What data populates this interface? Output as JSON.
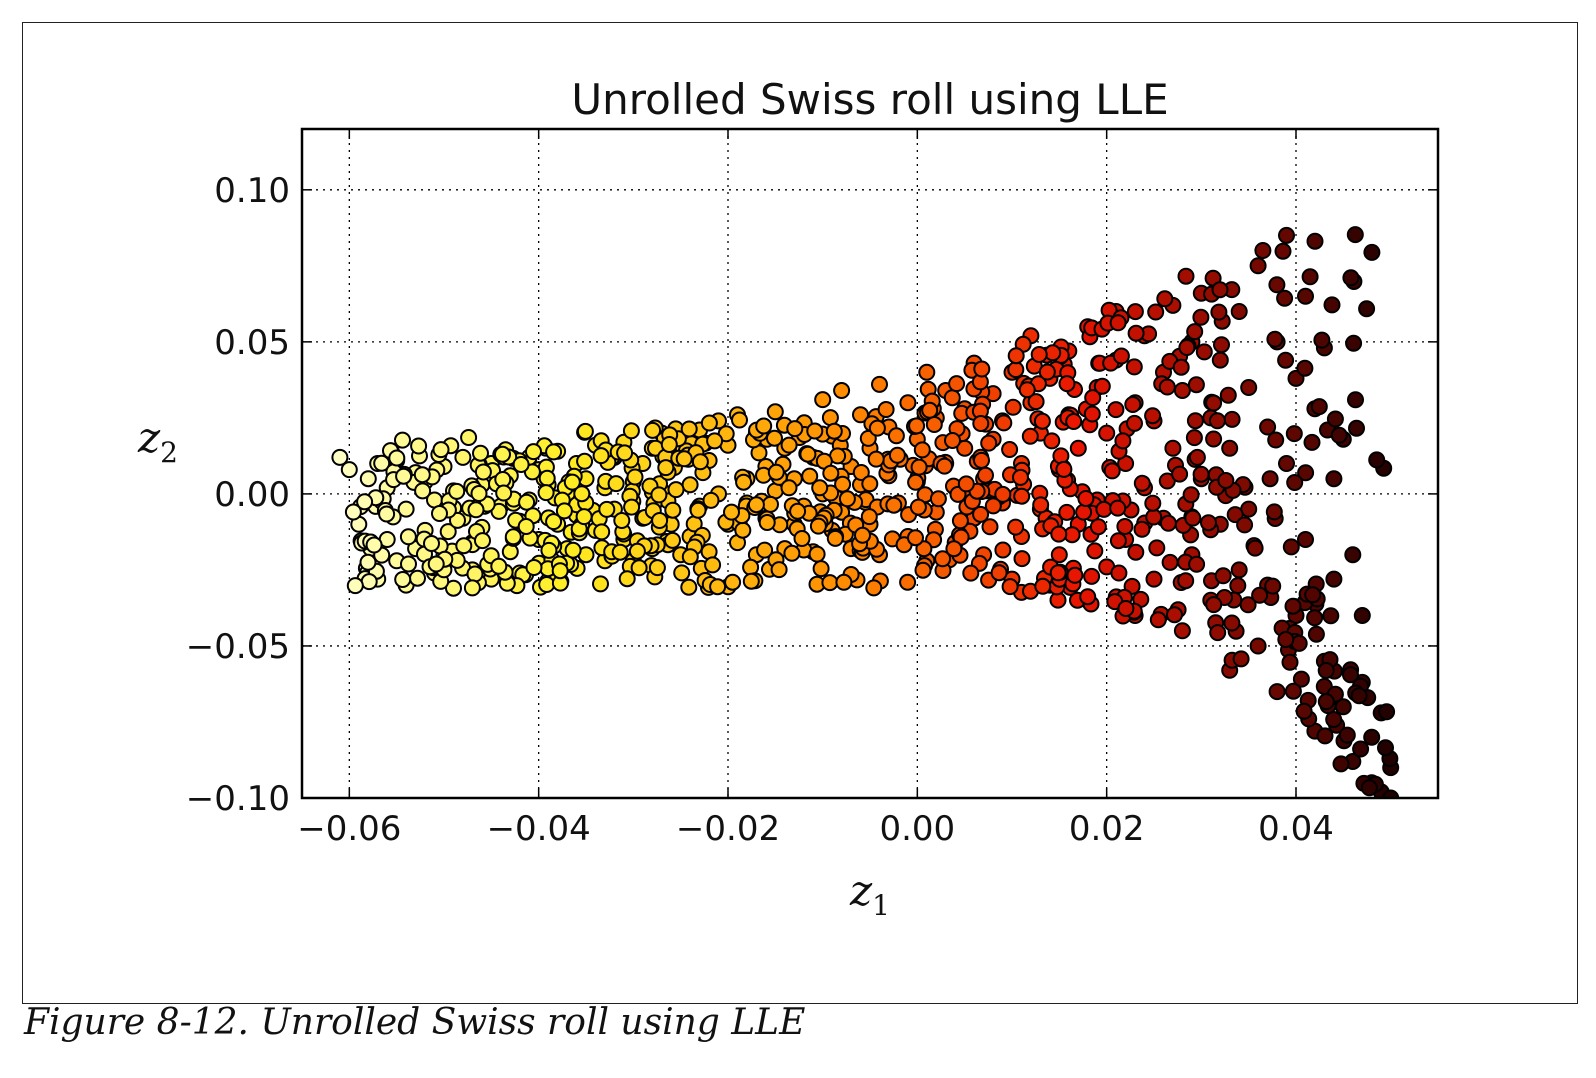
{
  "caption": "Figure 8-12. Unrolled Swiss roll using LLE",
  "chart_data": {
    "type": "scatter",
    "title": "Unrolled Swiss roll using LLE",
    "xlabel": "z",
    "xlabel_sub": "1",
    "ylabel": "z",
    "ylabel_sub": "2",
    "xlim": [
      -0.065,
      0.055
    ],
    "ylim": [
      -0.1,
      0.12
    ],
    "xticks": [
      -0.06,
      -0.04,
      -0.02,
      0.0,
      0.02,
      0.04
    ],
    "xtick_labels": [
      "−0.06",
      "−0.04",
      "−0.02",
      "0.00",
      "0.02",
      "0.04"
    ],
    "yticks": [
      -0.1,
      -0.05,
      0.0,
      0.05,
      0.1
    ],
    "ytick_labels": [
      "−0.10",
      "−0.05",
      "0.00",
      "0.05",
      "0.10"
    ],
    "grid": true,
    "colormap": "hot (color by position along the roll)",
    "colors": {
      "dark": "#1a0000",
      "red": "#e81400",
      "orange": "#ff8c00",
      "yellow": "#ffee22",
      "light": "#ffffcc"
    },
    "point_count": 1000,
    "points": [
      [
        -0.061,
        0.012
      ],
      [
        -0.06,
        0.008
      ],
      [
        -0.059,
        -0.01
      ],
      [
        -0.058,
        0.005
      ],
      [
        -0.057,
        -0.028
      ],
      [
        -0.057,
        0.01
      ],
      [
        -0.056,
        -0.015
      ],
      [
        -0.056,
        0.002
      ],
      [
        -0.055,
        -0.022
      ],
      [
        -0.055,
        0.011
      ],
      [
        -0.054,
        -0.005
      ],
      [
        -0.054,
        -0.03
      ],
      [
        -0.053,
        0.007
      ],
      [
        -0.053,
        -0.018
      ],
      [
        -0.052,
        -0.012
      ],
      [
        -0.052,
        0.004
      ],
      [
        -0.051,
        -0.026
      ],
      [
        -0.051,
        -0.002
      ],
      [
        -0.05,
        0.009
      ],
      [
        -0.05,
        -0.02
      ],
      [
        -0.049,
        -0.031
      ],
      [
        -0.049,
        0.001
      ],
      [
        -0.048,
        -0.008
      ],
      [
        -0.048,
        0.012
      ],
      [
        -0.047,
        -0.016
      ],
      [
        -0.047,
        -0.025
      ],
      [
        -0.046,
        0.003
      ],
      [
        -0.046,
        -0.011
      ],
      [
        -0.045,
        0.01
      ],
      [
        -0.045,
        -0.028
      ],
      [
        -0.044,
        -0.004
      ],
      [
        -0.044,
        0.013
      ],
      [
        -0.043,
        -0.019
      ],
      [
        -0.043,
        0.006
      ],
      [
        -0.042,
        -0.026
      ],
      [
        -0.042,
        -0.009
      ],
      [
        -0.041,
        0.012
      ],
      [
        -0.041,
        -0.002
      ],
      [
        -0.04,
        -0.015
      ],
      [
        -0.04,
        0.008
      ],
      [
        -0.039,
        -0.022
      ],
      [
        -0.039,
        0.003
      ],
      [
        -0.038,
        -0.01
      ],
      [
        -0.038,
        0.014
      ],
      [
        -0.037,
        -0.018
      ],
      [
        -0.037,
        0.0
      ],
      [
        -0.036,
        0.01
      ],
      [
        -0.036,
        -0.007
      ],
      [
        -0.035,
        -0.02
      ],
      [
        -0.035,
        0.005
      ],
      [
        -0.034,
        0.016
      ],
      [
        -0.034,
        -0.012
      ],
      [
        -0.033,
        0.002
      ],
      [
        -0.033,
        -0.022
      ],
      [
        -0.032,
        0.012
      ],
      [
        -0.032,
        -0.005
      ],
      [
        -0.031,
        0.017
      ],
      [
        -0.031,
        -0.015
      ],
      [
        -0.03,
        0.004
      ],
      [
        -0.03,
        -0.022
      ],
      [
        -0.029,
        0.01
      ],
      [
        -0.029,
        -0.008
      ],
      [
        -0.028,
        0.015
      ],
      [
        -0.028,
        -0.018
      ],
      [
        -0.027,
        0.001
      ],
      [
        -0.027,
        0.02
      ],
      [
        -0.026,
        -0.01
      ],
      [
        -0.026,
        0.009
      ],
      [
        -0.025,
        -0.02
      ],
      [
        -0.025,
        0.014
      ],
      [
        -0.024,
        0.003
      ],
      [
        -0.024,
        -0.014
      ],
      [
        -0.023,
        0.021
      ],
      [
        -0.023,
        -0.004
      ],
      [
        -0.022,
        0.011
      ],
      [
        -0.022,
        -0.019
      ],
      [
        -0.021,
        0.024
      ],
      [
        -0.021,
        0.0
      ],
      [
        -0.02,
        -0.01
      ],
      [
        -0.02,
        0.016
      ],
      [
        -0.019,
        0.026
      ],
      [
        -0.019,
        -0.016
      ],
      [
        -0.018,
        0.005
      ],
      [
        -0.018,
        -0.003
      ],
      [
        -0.017,
        0.02
      ],
      [
        -0.017,
        -0.02
      ],
      [
        -0.016,
        0.009
      ],
      [
        -0.016,
        -0.008
      ],
      [
        -0.015,
        0.027
      ],
      [
        -0.015,
        0.001
      ],
      [
        -0.014,
        -0.018
      ],
      [
        -0.014,
        0.015
      ],
      [
        -0.013,
        0.005
      ],
      [
        -0.013,
        -0.01
      ],
      [
        -0.012,
        0.022
      ],
      [
        -0.012,
        -0.004
      ],
      [
        -0.011,
        0.012
      ],
      [
        -0.011,
        -0.019
      ],
      [
        -0.01,
        0.031
      ],
      [
        -0.01,
        0.0
      ],
      [
        -0.009,
        -0.012
      ],
      [
        -0.009,
        0.019
      ],
      [
        -0.008,
        0.034
      ],
      [
        -0.008,
        -0.006
      ],
      [
        -0.007,
        0.009
      ],
      [
        -0.007,
        -0.018
      ],
      [
        -0.006,
        0.026
      ],
      [
        -0.006,
        0.003
      ],
      [
        -0.005,
        -0.01
      ],
      [
        -0.005,
        0.015
      ],
      [
        -0.004,
        0.036
      ],
      [
        -0.004,
        -0.02
      ],
      [
        -0.003,
        0.006
      ],
      [
        -0.003,
        0.022
      ],
      [
        -0.002,
        -0.003
      ],
      [
        -0.002,
        0.012
      ],
      [
        -0.001,
        0.03
      ],
      [
        -0.001,
        -0.014
      ],
      [
        0.0,
        0.004
      ],
      [
        0.0,
        0.018
      ],
      [
        0.001,
        0.04
      ],
      [
        0.001,
        -0.022
      ],
      [
        0.002,
        -0.006
      ],
      [
        0.002,
        0.025
      ],
      [
        0.003,
        0.01
      ],
      [
        0.003,
        0.034
      ],
      [
        0.004,
        -0.016
      ],
      [
        0.004,
        0.002
      ],
      [
        0.005,
        0.028
      ],
      [
        0.005,
        0.015
      ],
      [
        0.006,
        -0.008
      ],
      [
        0.006,
        0.043
      ],
      [
        0.007,
        0.005
      ],
      [
        0.007,
        -0.02
      ],
      [
        0.008,
        0.033
      ],
      [
        0.008,
        0.018
      ],
      [
        0.009,
        -0.003
      ],
      [
        0.009,
        0.024
      ],
      [
        0.01,
        -0.028
      ],
      [
        0.01,
        0.04
      ],
      [
        0.011,
        0.01
      ],
      [
        0.011,
        -0.014
      ],
      [
        0.012,
        0.03
      ],
      [
        0.012,
        0.052
      ],
      [
        0.013,
        -0.005
      ],
      [
        0.013,
        0.02
      ],
      [
        0.014,
        -0.03
      ],
      [
        0.014,
        0.038
      ],
      [
        0.015,
        0.008
      ],
      [
        0.015,
        -0.02
      ],
      [
        0.016,
        0.026
      ],
      [
        0.016,
        0.047
      ],
      [
        0.017,
        -0.01
      ],
      [
        0.017,
        0.015
      ],
      [
        0.018,
        -0.035
      ],
      [
        0.018,
        0.055
      ],
      [
        0.019,
        0.035
      ],
      [
        0.019,
        -0.002
      ],
      [
        0.02,
        0.02
      ],
      [
        0.02,
        -0.024
      ],
      [
        0.021,
        0.06
      ],
      [
        0.021,
        0.044
      ],
      [
        0.022,
        -0.015
      ],
      [
        0.022,
        0.01
      ],
      [
        0.023,
        0.03
      ],
      [
        0.023,
        -0.04
      ],
      [
        0.024,
        0.052
      ],
      [
        0.024,
        0.002
      ],
      [
        0.025,
        -0.028
      ],
      [
        0.025,
        0.024
      ],
      [
        0.026,
        0.04
      ],
      [
        0.026,
        -0.008
      ],
      [
        0.027,
        0.062
      ],
      [
        0.027,
        0.015
      ],
      [
        0.028,
        -0.045
      ],
      [
        0.028,
        0.034
      ],
      [
        0.029,
        -0.02
      ],
      [
        0.029,
        0.05
      ],
      [
        0.03,
        0.005
      ],
      [
        0.03,
        0.066
      ],
      [
        0.031,
        -0.035
      ],
      [
        0.031,
        0.025
      ],
      [
        0.032,
        -0.01
      ],
      [
        0.032,
        0.044
      ],
      [
        0.033,
        -0.058
      ],
      [
        0.033,
        0.015
      ],
      [
        0.034,
        0.06
      ],
      [
        0.034,
        -0.025
      ],
      [
        0.035,
        0.035
      ],
      [
        0.035,
        -0.005
      ],
      [
        0.036,
        0.075
      ],
      [
        0.036,
        -0.05
      ],
      [
        0.037,
        0.022
      ],
      [
        0.037,
        -0.03
      ],
      [
        0.038,
        0.05
      ],
      [
        0.038,
        -0.065
      ],
      [
        0.039,
        0.085
      ],
      [
        0.039,
        0.01
      ],
      [
        0.04,
        -0.04
      ],
      [
        0.04,
        0.038
      ],
      [
        0.041,
        0.065
      ],
      [
        0.041,
        -0.015
      ],
      [
        0.042,
        -0.078
      ],
      [
        0.042,
        0.028
      ],
      [
        0.043,
        0.048
      ],
      [
        0.043,
        -0.055
      ],
      [
        0.044,
        0.005
      ],
      [
        0.044,
        -0.028
      ],
      [
        0.045,
        0.018
      ],
      [
        0.045,
        -0.07
      ],
      [
        0.046,
        -0.02
      ],
      [
        0.046,
        -0.088
      ],
      [
        0.047,
        -0.04
      ],
      [
        0.047,
        -0.062
      ],
      [
        0.048,
        -0.08
      ],
      [
        0.048,
        -0.095
      ],
      [
        0.049,
        -0.072
      ],
      [
        0.049,
        -0.098
      ],
      [
        0.05,
        -0.09
      ],
      [
        0.05,
        -0.1
      ]
    ]
  }
}
